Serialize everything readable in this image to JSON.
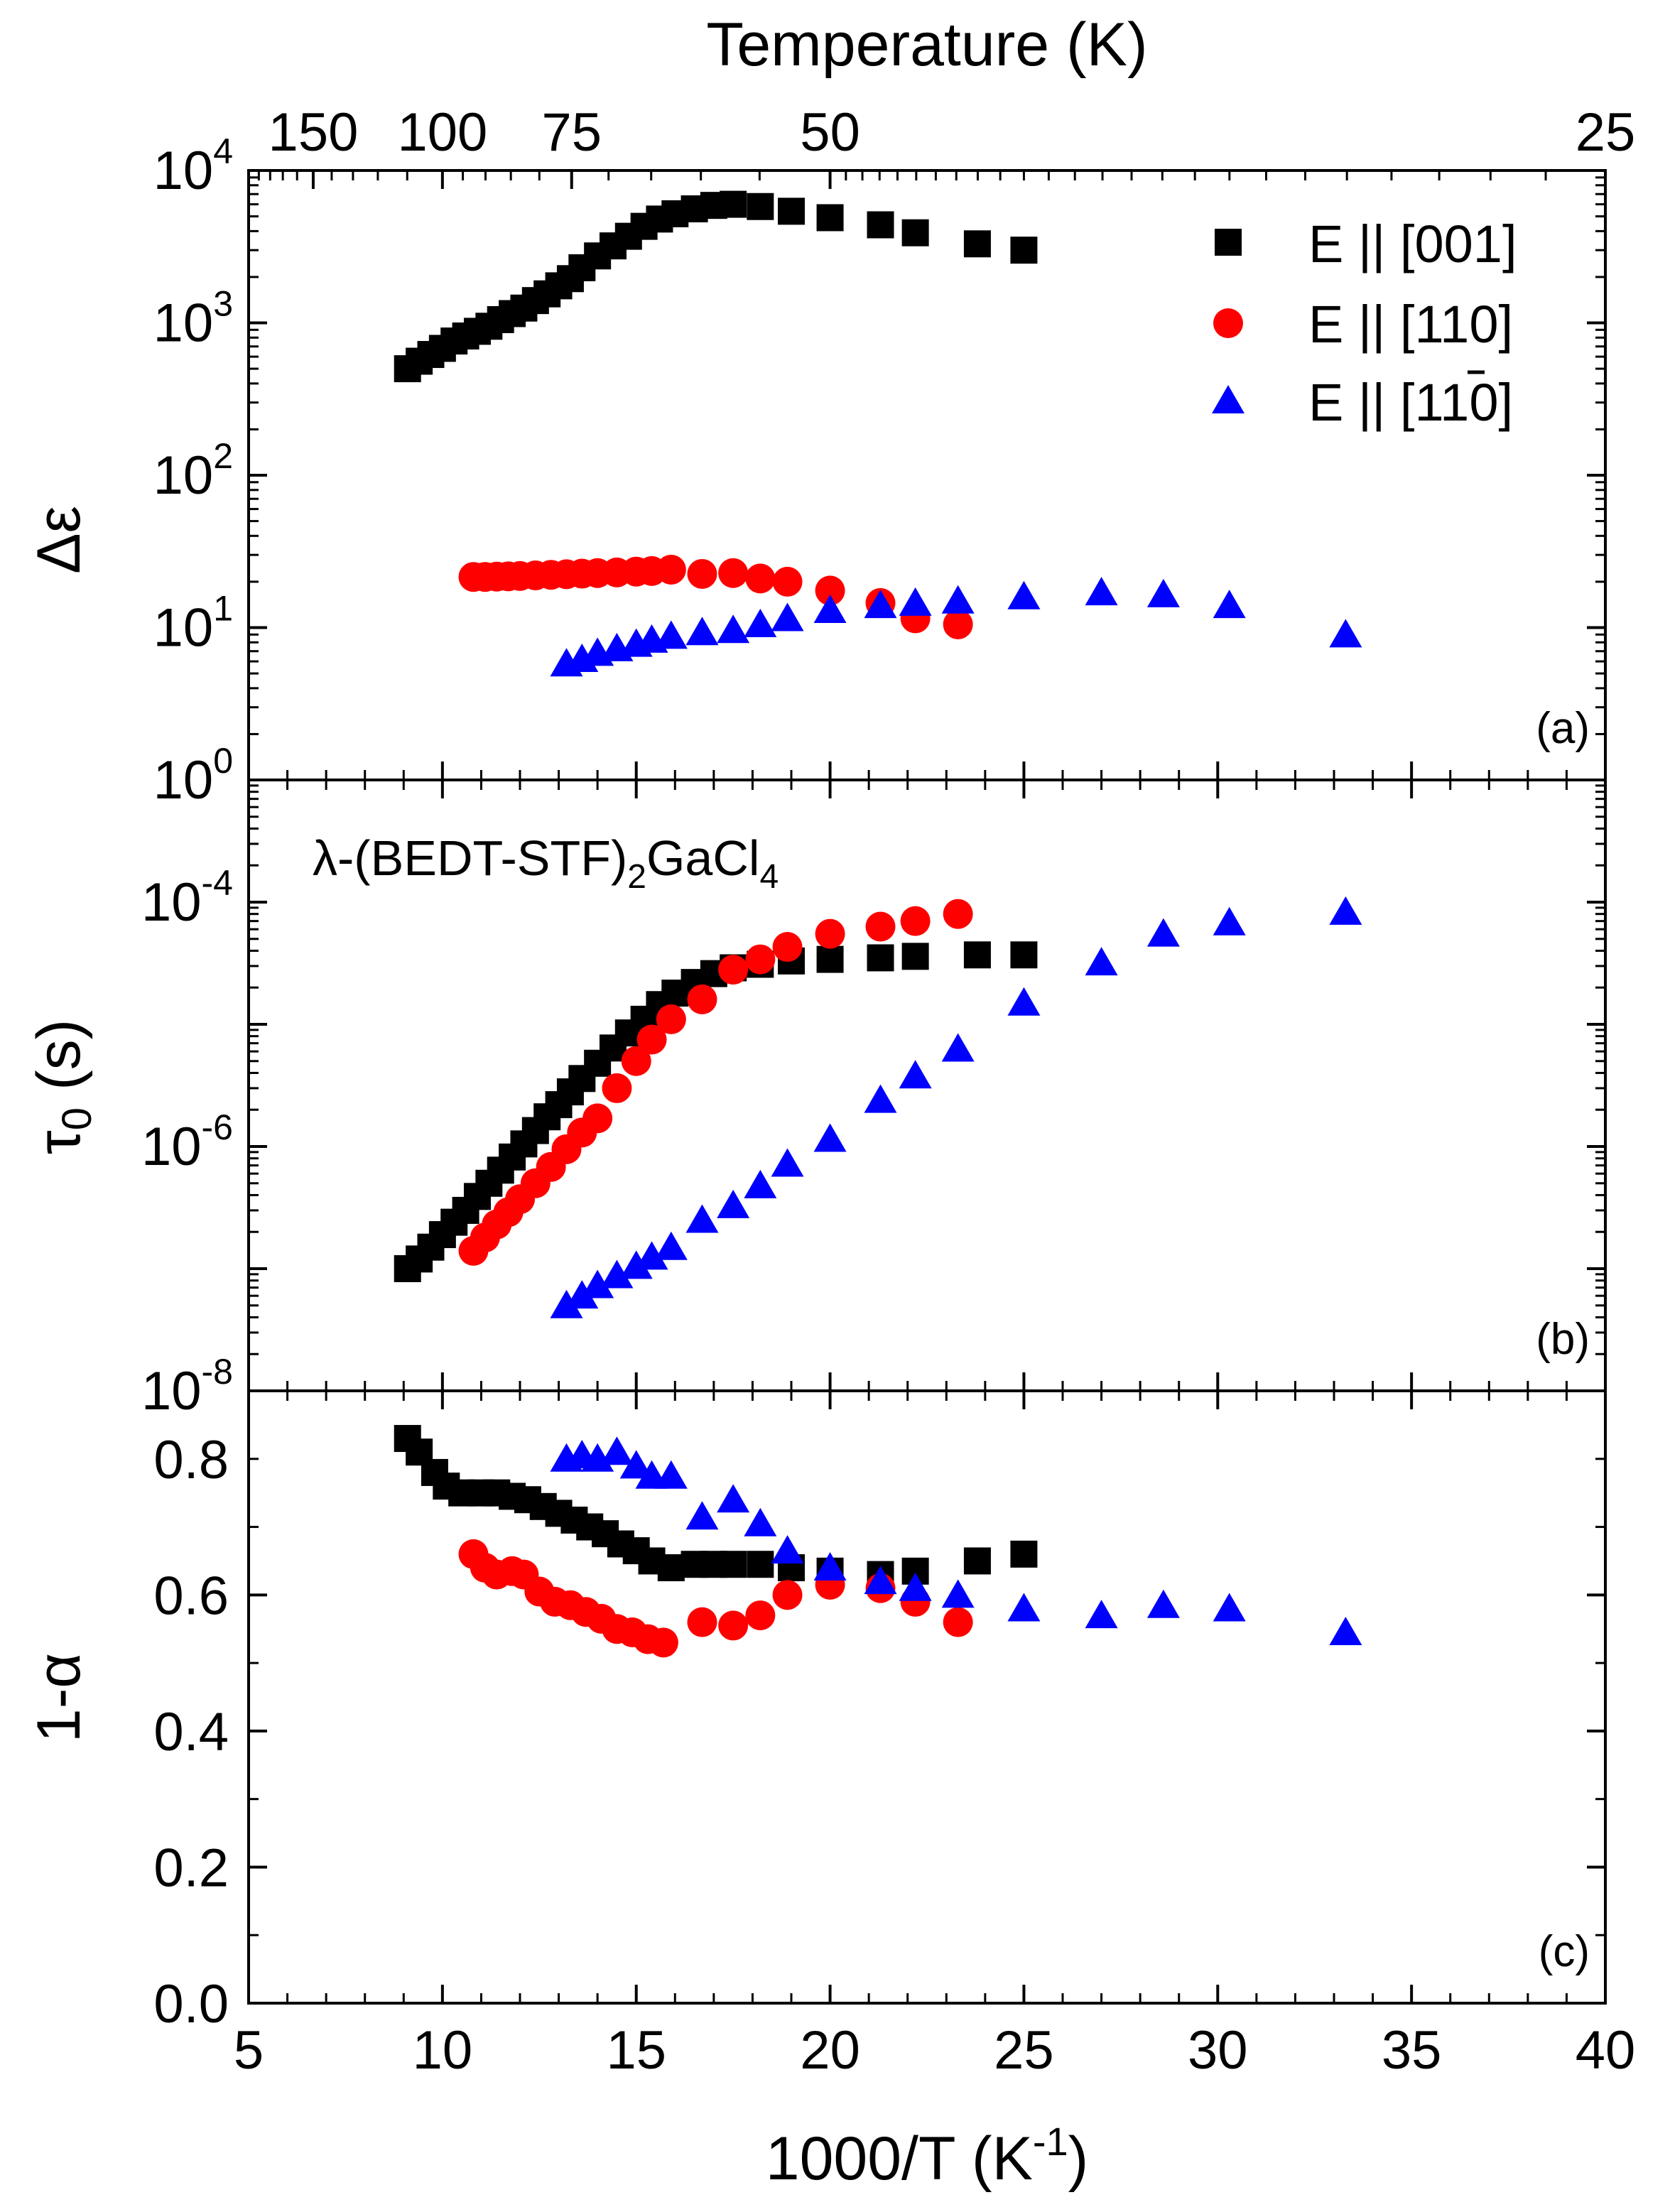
{
  "figure": {
    "top_axis_title": "Temperature (K)",
    "x_axis_title": "1000/T (K",
    "x_axis_title_sup": "-1",
    "x_axis_title_end": ")",
    "annotation_prefix": "λ-(BEDT-STF)",
    "annotation_sub1": "2",
    "annotation_mid": "GaCl",
    "annotation_sub2": "4"
  },
  "legend": {
    "e001": "E || [001]",
    "e110_pre": "E || [1",
    "e110_mid": "1",
    "e110_post": "0]",
    "e1bar10_pre": "E || [1",
    "e1bar10_bar": "1",
    "e1bar10_post": "0]"
  },
  "colors": {
    "e001": "#000000",
    "e110": "#ff0000",
    "e1bar10": "#0000ff"
  },
  "chart_data": {
    "type": "scatter",
    "x_axis": {
      "label": "1000/T (K-1)",
      "lim": [
        5,
        40
      ],
      "ticks": [
        5,
        10,
        15,
        20,
        25,
        30,
        35,
        40
      ]
    },
    "top_axis": {
      "label": "Temperature (K)",
      "ticks": [
        {
          "label": "150",
          "x": 6.6667
        },
        {
          "label": "100",
          "x": 10
        },
        {
          "label": "75",
          "x": 13.3333
        },
        {
          "label": "50",
          "x": 20
        },
        {
          "label": "25",
          "x": 40
        }
      ]
    },
    "panels": [
      {
        "id": "a",
        "panel_label": "(a)",
        "ylabel": "Δε",
        "yscale": "log",
        "ylim": [
          1,
          10000
        ],
        "ytick_labels": [
          {
            "base": "10",
            "exp": "0"
          },
          {
            "base": "10",
            "exp": "1"
          },
          {
            "base": "10",
            "exp": "2"
          },
          {
            "base": "10",
            "exp": "3"
          },
          {
            "base": "10",
            "exp": "4"
          }
        ],
        "series": [
          {
            "name": "E || [001]",
            "marker": "square",
            "x": [
              9.1,
              9.4,
              9.7,
              10.0,
              10.3,
              10.6,
              10.9,
              11.2,
              11.5,
              11.8,
              12.1,
              12.4,
              12.7,
              13.0,
              13.3,
              13.6,
              14.0,
              14.4,
              14.8,
              15.2,
              15.6,
              16.0,
              16.5,
              17.0,
              17.5,
              18.2,
              19.0,
              20.0,
              21.3,
              22.2,
              23.8,
              25.0
            ],
            "y": [
              500,
              560,
              620,
              680,
              760,
              820,
              880,
              950,
              1050,
              1150,
              1250,
              1400,
              1550,
              1750,
              1950,
              2300,
              2750,
              3200,
              3700,
              4300,
              4800,
              5200,
              5600,
              5900,
              6000,
              5800,
              5400,
              4900,
              4400,
              3900,
              3300,
              3000
            ]
          },
          {
            "name": "E || [110]",
            "marker": "circle",
            "x": [
              10.8,
              11.1,
              11.4,
              11.7,
              12.0,
              12.4,
              12.8,
              13.2,
              13.6,
              14.0,
              14.5,
              15.0,
              15.4,
              15.9,
              16.7,
              17.5,
              18.2,
              18.9,
              20.0,
              21.3,
              22.2,
              23.3
            ],
            "y": [
              21.5,
              21.5,
              21.6,
              21.7,
              21.8,
              22.0,
              22.2,
              22.4,
              22.6,
              22.8,
              23.0,
              23.3,
              23.5,
              24.0,
              22.5,
              22.8,
              21.0,
              20.0,
              17.5,
              14.5,
              11.5,
              10.5
            ]
          },
          {
            "name": "E || [1-10]",
            "marker": "triangle",
            "x": [
              13.2,
              13.6,
              14.0,
              14.5,
              15.0,
              15.4,
              15.9,
              16.7,
              17.5,
              18.2,
              18.9,
              20.0,
              21.3,
              22.2,
              23.3,
              25.0,
              27.0,
              28.6,
              30.3,
              33.3
            ],
            "y": [
              5.8,
              6.2,
              6.8,
              7.3,
              7.8,
              8.3,
              8.8,
              9.3,
              9.6,
              10.5,
              11.5,
              13.0,
              14.0,
              14.5,
              15.0,
              16.0,
              17.0,
              16.5,
              14.0,
              9.0
            ]
          }
        ]
      },
      {
        "id": "b",
        "panel_label": "(b)",
        "ylabel": "τ0 (s)",
        "yscale": "log",
        "ylim": [
          1e-08,
          0.001
        ],
        "ytick_labels": [
          {
            "base": "10",
            "exp": "-8"
          },
          {
            "base": "10",
            "exp": "-6"
          },
          {
            "base": "10",
            "exp": "-4"
          }
        ],
        "series": [
          {
            "name": "E || [001]",
            "marker": "square",
            "x": [
              9.1,
              9.4,
              9.7,
              10.0,
              10.3,
              10.6,
              10.9,
              11.2,
              11.5,
              11.8,
              12.1,
              12.4,
              12.7,
              13.0,
              13.3,
              13.6,
              14.0,
              14.4,
              14.8,
              15.2,
              15.6,
              16.0,
              16.5,
              17.0,
              17.5,
              18.2,
              19.0,
              20.0,
              21.3,
              22.2,
              23.8,
              25.0
            ],
            "y": [
              1e-07,
              1.2e-07,
              1.5e-07,
              1.9e-07,
              2.4e-07,
              3e-07,
              3.9e-07,
              5e-07,
              6.4e-07,
              8.2e-07,
              1.05e-06,
              1.35e-06,
              1.75e-06,
              2.2e-06,
              2.8e-06,
              3.6e-06,
              4.8e-06,
              6.4e-06,
              8.5e-06,
              1.1e-05,
              1.45e-05,
              1.8e-05,
              2.2e-05,
              2.6e-05,
              2.9e-05,
              3.1e-05,
              3.3e-05,
              3.4e-05,
              3.5e-05,
              3.6e-05,
              3.7e-05,
              3.7e-05
            ]
          },
          {
            "name": "E || [110]",
            "marker": "circle",
            "x": [
              10.8,
              11.1,
              11.4,
              11.7,
              12.0,
              12.4,
              12.8,
              13.2,
              13.6,
              14.0,
              14.5,
              15.0,
              15.4,
              15.9,
              16.7,
              17.5,
              18.2,
              18.9,
              20.0,
              21.3,
              22.2,
              23.3
            ],
            "y": [
              1.4e-07,
              1.8e-07,
              2.3e-07,
              2.9e-07,
              3.7e-07,
              5e-07,
              6.8e-07,
              9.5e-07,
              1.3e-06,
              1.7e-06,
              3e-06,
              5e-06,
              7.5e-06,
              1.1e-05,
              1.6e-05,
              2.8e-05,
              3.4e-05,
              4.3e-05,
              5.5e-05,
              6.3e-05,
              7e-05,
              8e-05
            ]
          },
          {
            "name": "E || [1-10]",
            "marker": "triangle",
            "x": [
              13.2,
              13.6,
              14.0,
              14.5,
              15.0,
              15.4,
              15.9,
              16.7,
              17.5,
              18.2,
              18.9,
              20.0,
              21.3,
              22.2,
              23.3,
              25.0,
              27.0,
              28.6,
              30.3,
              33.3
            ],
            "y": [
              5e-08,
              6e-08,
              7.3e-08,
              8.8e-08,
              1.05e-07,
              1.25e-07,
              1.5e-07,
              2.5e-07,
              3.3e-07,
              4.8e-07,
              7.2e-07,
              1.15e-06,
              2.4e-06,
              3.8e-06,
              6.3e-06,
              1.5e-05,
              3.2e-05,
              5.5e-05,
              6.8e-05,
              8.3e-05
            ]
          }
        ]
      },
      {
        "id": "c",
        "panel_label": "(c)",
        "ylabel": "1-α",
        "yscale": "linear",
        "ylim": [
          0.0,
          0.9
        ],
        "ytick_labels": [
          "0.0",
          "0.2",
          "0.4",
          "0.6",
          "0.8"
        ],
        "series": [
          {
            "name": "E || [001]",
            "marker": "square",
            "x": [
              9.1,
              9.4,
              9.8,
              10.1,
              10.5,
              11.0,
              11.4,
              11.8,
              12.2,
              12.6,
              13.0,
              13.4,
              13.8,
              14.2,
              14.6,
              15.0,
              15.4,
              15.9,
              16.5,
              17.0,
              17.5,
              18.2,
              19.0,
              20.0,
              21.3,
              22.2,
              23.8,
              25.0
            ],
            "y": [
              0.83,
              0.81,
              0.78,
              0.76,
              0.75,
              0.75,
              0.75,
              0.745,
              0.74,
              0.73,
              0.72,
              0.71,
              0.7,
              0.69,
              0.675,
              0.665,
              0.65,
              0.64,
              0.645,
              0.645,
              0.645,
              0.645,
              0.64,
              0.635,
              0.63,
              0.635,
              0.65,
              0.66
            ]
          },
          {
            "name": "E || [110]",
            "marker": "circle",
            "x": [
              10.8,
              11.1,
              11.4,
              11.8,
              12.1,
              12.5,
              12.9,
              13.3,
              13.7,
              14.1,
              14.5,
              14.9,
              15.3,
              15.7,
              16.7,
              17.5,
              18.2,
              18.9,
              20.0,
              21.3,
              22.2,
              23.3
            ],
            "y": [
              0.66,
              0.64,
              0.63,
              0.635,
              0.63,
              0.605,
              0.59,
              0.585,
              0.575,
              0.565,
              0.55,
              0.545,
              0.535,
              0.53,
              0.56,
              0.555,
              0.57,
              0.6,
              0.615,
              0.61,
              0.59,
              0.56
            ]
          },
          {
            "name": "E || [1-10]",
            "marker": "triangle",
            "x": [
              13.2,
              13.6,
              14.0,
              14.5,
              15.0,
              15.4,
              15.9,
              16.7,
              17.5,
              18.2,
              18.9,
              20.0,
              21.3,
              22.2,
              23.3,
              25.0,
              27.0,
              28.6,
              30.3,
              33.3
            ],
            "y": [
              0.8,
              0.805,
              0.8,
              0.81,
              0.79,
              0.775,
              0.775,
              0.715,
              0.74,
              0.705,
              0.665,
              0.64,
              0.62,
              0.61,
              0.6,
              0.58,
              0.57,
              0.585,
              0.58,
              0.545
            ]
          }
        ]
      }
    ]
  }
}
